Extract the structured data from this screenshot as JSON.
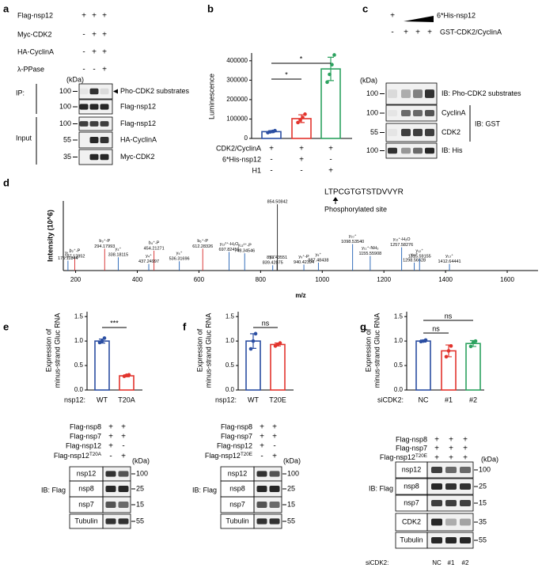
{
  "panel_labels": [
    "a",
    "b",
    "c",
    "d",
    "e",
    "f",
    "g"
  ],
  "chart_data": [
    {
      "type": "bar",
      "ylabel": "Luminescence",
      "categories": [
        null,
        null,
        null
      ],
      "values": [
        35000,
        102000,
        358000
      ],
      "errors": [
        5000,
        20000,
        60000
      ],
      "points": [
        [
          30000,
          34000,
          36000,
          40000
        ],
        [
          82000,
          95000,
          108000,
          125000
        ],
        [
          290000,
          330000,
          380000,
          430000
        ]
      ],
      "colors": [
        "#2b4ea2",
        "#e2342d",
        "#2ca25f"
      ],
      "ylim": [
        0,
        440000
      ],
      "yticks": [
        0,
        100000,
        200000,
        300000,
        400000
      ],
      "significance": [
        "*",
        "*"
      ],
      "conditions": [
        {
          "label": "CDK2/CyclinA",
          "signs": [
            "+",
            "+",
            "+"
          ]
        },
        {
          "label": "6*His-nsp12",
          "signs": [
            "-",
            "+",
            "-"
          ]
        },
        {
          "label": "H1",
          "signs": [
            "-",
            "-",
            "+"
          ]
        }
      ]
    },
    {
      "type": "stem",
      "xlabel": "m/z",
      "ylabel": "Intensity (10^6)",
      "peptide": "LTPCGTGTSTDVVYR",
      "annotation": "Phosphorylated site",
      "xlim": [
        160,
        1700
      ],
      "ylim": [
        0,
        105
      ],
      "xticks": [
        200,
        400,
        600,
        800,
        1000,
        1200,
        1400,
        1600
      ],
      "series": [
        {
          "color": "#d62728",
          "x": [
            197.12852,
            294.17993,
            454.21271,
            612.28326
          ],
          "x_labels": [
            "197.12852",
            "294.17993",
            "454.21271",
            "612.28326"
          ],
          "values": [
            18,
            33,
            30,
            33
          ],
          "ions": [
            "b₂⁺-P",
            "b₃⁺-P",
            "b₄⁺-P",
            "b₆⁺-P"
          ]
        },
        {
          "color": "#1f5fb4",
          "x": [
            175.11844,
            338.18115,
            437.24997,
            536.31696,
            697.82416,
            748.34546,
            839.42075,
            940.42394,
            987.48438,
            1098.5354,
            1155.55908,
            1257.58276,
            1298.56628,
            1315.59155,
            1412.64441
          ],
          "x_labels": [
            "175.11844",
            "338.18115",
            "437.24997",
            "536.31696",
            "697.82416",
            "748.34546",
            "839.42075",
            "940.42394",
            "987.48438",
            "1098.53540",
            "1155.55908",
            "1257.58276",
            "1298.56628",
            "1315.59155",
            "1412.64441"
          ],
          "values": [
            15,
            20,
            10,
            14,
            28,
            26,
            8,
            9,
            12,
            40,
            22,
            35,
            12,
            18,
            10
          ],
          "ions": [
            "y₁⁺",
            "y₃⁺",
            "y₄⁺",
            "y₅⁺",
            "y₁₂²⁺-H₂O",
            "y₁₃²⁺-P",
            "y₈⁺",
            "y₉⁺-P",
            "y₉⁺",
            "y₁₀⁺",
            "y₁₁⁺-NH₃",
            "y₁₂⁺-H₂O",
            "y₁₁⁺",
            "y₁₂⁺",
            "y₁₃⁺"
          ]
        },
        {
          "color": "#222222",
          "x": [
            853.43551,
            854.50842
          ],
          "x_labels": [
            "853.43551",
            "854.50842"
          ],
          "values": [
            16,
            100
          ],
          "ions": [
            null,
            null
          ]
        }
      ]
    },
    {
      "type": "bar",
      "ylabel": [
        "Expression of",
        "minus-strand Gluc RNA"
      ],
      "x_prefix": "nsp12:",
      "categories": [
        "WT",
        "T20A"
      ],
      "values": [
        1.0,
        0.29
      ],
      "errors": [
        0.04,
        0.02
      ],
      "points": [
        [
          0.97,
          1.0,
          1.06
        ],
        [
          0.28,
          0.3,
          0.31
        ]
      ],
      "colors": [
        "#2b4ea2",
        "#e2342d"
      ],
      "ylim": [
        0,
        1.6
      ],
      "yticks": [
        {
          "value": 0,
          "label": "0.0"
        },
        0.5,
        {
          "value": 1,
          "label": "1.0"
        },
        1.5
      ],
      "significance": [
        "***"
      ]
    },
    {
      "type": "bar",
      "ylabel": [
        "Expression of",
        "minus-strand Gluc RNA"
      ],
      "x_prefix": "nsp12:",
      "categories": [
        "WT",
        "T20E"
      ],
      "values": [
        1.0,
        0.93
      ],
      "errors": [
        0.15,
        0.03
      ],
      "points": [
        [
          0.84,
          1.0,
          1.15
        ],
        [
          0.9,
          0.93,
          0.96
        ]
      ],
      "colors": [
        "#2b4ea2",
        "#e2342d"
      ],
      "ylim": [
        0,
        1.6
      ],
      "yticks": [
        {
          "value": 0,
          "label": "0.0"
        },
        0.5,
        {
          "value": 1,
          "label": "1.0"
        },
        1.5
      ],
      "significance": [
        "ns"
      ]
    },
    {
      "type": "bar",
      "ylabel": [
        "Expression of",
        "minus-strand Gluc RNA"
      ],
      "x_prefix": "siCDK2:",
      "categories": [
        "NC",
        "#1",
        "#2"
      ],
      "values": [
        1.0,
        0.8,
        0.95
      ],
      "errors": [
        0.02,
        0.12,
        0.06
      ],
      "points": [
        [
          0.99,
          1.0,
          1.02
        ],
        [
          0.68,
          0.8,
          0.9
        ],
        [
          0.89,
          0.97,
          1.0
        ]
      ],
      "colors": [
        "#2b4ea2",
        "#e2342d",
        "#2ca25f"
      ],
      "ylim": [
        0,
        1.6
      ],
      "yticks": [
        {
          "value": 0,
          "label": "0.0"
        },
        0.5,
        {
          "value": 1,
          "label": "1.0"
        },
        1.5
      ],
      "significance": [
        "ns",
        "ns"
      ]
    }
  ],
  "blots": {
    "a": {
      "conditions": [
        {
          "label": "Flag-nsp12",
          "signs": [
            "+",
            "+",
            "+"
          ]
        },
        {
          "label": "Myc-CDK2",
          "signs": [
            "-",
            "+",
            "+"
          ]
        },
        {
          "label": "HA-CyclinA",
          "signs": [
            "-",
            "+",
            "+"
          ]
        },
        {
          "label": "λ-PPase",
          "signs": [
            "-",
            "-",
            "+"
          ]
        }
      ],
      "unit": "(kDa)",
      "sections": [
        {
          "label": "IP:",
          "bands": [
            {
              "label": "Pho-CDK2 substrates",
              "marker": 100
            },
            {
              "label": "Flag-nsp12",
              "marker": 100
            }
          ]
        },
        {
          "label": "Input",
          "bands": [
            {
              "label": "Flag-nsp12",
              "marker": 100
            },
            {
              "label": "HA-CyclinA",
              "marker": 55
            },
            {
              "label": "Myc-CDK2",
              "marker": 35
            }
          ]
        }
      ]
    },
    "c": {
      "conditions": [
        {
          "label": "6*His-nsp12",
          "signs": [
            "+"
          ]
        },
        {
          "label": "GST-CDK2/CyclinA",
          "signs": [
            "-",
            "+",
            "+",
            "+"
          ]
        }
      ],
      "unit": "(kDa)",
      "sections": [
        {
          "bands": [
            {
              "label": "IB: Pho-CDK2 substrates",
              "marker": 100
            }
          ]
        },
        {
          "label": "IB: GST",
          "bands": [
            {
              "label": "CyclinA",
              "marker": 100
            },
            {
              "label": "CDK2",
              "marker": 55
            }
          ]
        },
        {
          "bands": [
            {
              "label": "IB: His",
              "marker": 100
            }
          ]
        }
      ]
    },
    "e": {
      "conditions": [
        {
          "label": "Flag-nsp8",
          "signs": [
            "+",
            "+"
          ]
        },
        {
          "label": "Flag-nsp7",
          "signs": [
            "+",
            "+"
          ]
        },
        {
          "label": "Flag-nsp12",
          "signs": [
            "+",
            "-"
          ]
        },
        {
          "label": {
            "text": "Flag-nsp12",
            "sup": "T20A"
          },
          "signs": [
            "-",
            "+"
          ]
        }
      ],
      "unit": "(kDa)",
      "sections": [
        {
          "label": "IB: Flag",
          "bands": [
            {
              "label": "nsp12",
              "marker": 100
            },
            {
              "label": "nsp8",
              "marker": 25
            },
            {
              "label": "nsp7",
              "marker": 15
            }
          ]
        },
        {
          "bands": [
            {
              "label": "Tubulin",
              "marker": 55
            }
          ]
        }
      ]
    },
    "f": {
      "conditions": [
        {
          "label": "Flag-nsp8",
          "signs": [
            "+",
            "+"
          ]
        },
        {
          "label": "Flag-nsp7",
          "signs": [
            "+",
            "+"
          ]
        },
        {
          "label": "Flag-nsp12",
          "signs": [
            "+",
            "-"
          ]
        },
        {
          "label": {
            "text": "Flag-nsp12",
            "sup": "T20E"
          },
          "signs": [
            "-",
            "+"
          ]
        }
      ],
      "unit": "(kDa)",
      "sections": [
        {
          "label": "IB: Flag",
          "bands": [
            {
              "label": "nsp12",
              "marker": 100
            },
            {
              "label": "nsp8",
              "marker": 25
            },
            {
              "label": "nsp7",
              "marker": 15
            }
          ]
        },
        {
          "bands": [
            {
              "label": "Tubulin",
              "marker": 55
            }
          ]
        }
      ]
    },
    "g": {
      "conditions": [
        {
          "label": "Flag-nsp8",
          "signs": [
            "+",
            "+",
            "+"
          ]
        },
        {
          "label": "Flag-nsp7",
          "signs": [
            "+",
            "+",
            "+"
          ]
        },
        {
          "label": {
            "text": "Flag-nsp12",
            "sup": "T20E"
          },
          "signs": [
            "+",
            "+",
            "+"
          ]
        }
      ],
      "unit": "(kDa)",
      "sections": [
        {
          "label": "IB: Flag",
          "bands": [
            {
              "label": "nsp12",
              "marker": 100
            },
            {
              "label": "nsp8",
              "marker": 25
            },
            {
              "label": "nsp7",
              "marker": 15
            }
          ]
        },
        {
          "bands": [
            {
              "label": "CDK2",
              "marker": 35
            },
            {
              "label": "Tubulin",
              "marker": 55
            }
          ]
        }
      ],
      "lane_label": "siCDK2:",
      "lanes": [
        "NC",
        "#1",
        "#2"
      ]
    }
  }
}
